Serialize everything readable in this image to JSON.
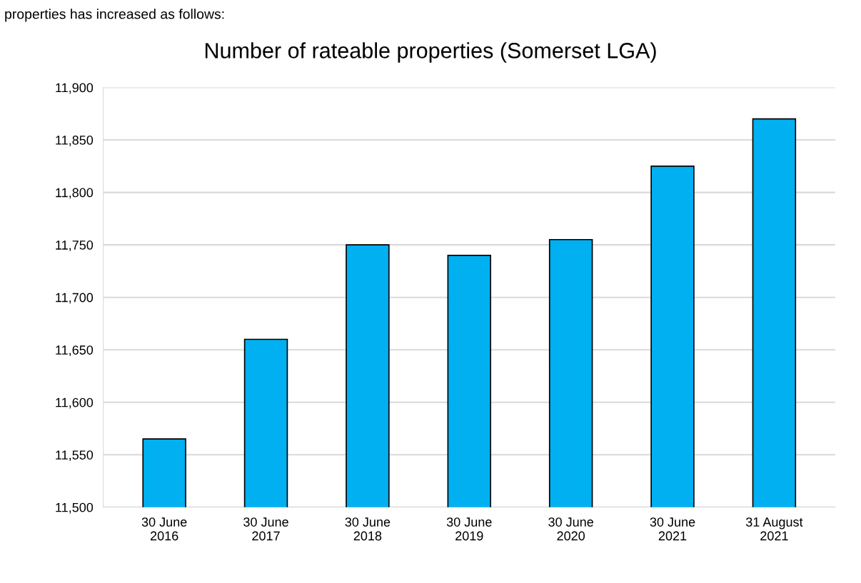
{
  "chart_data": {
    "type": "bar",
    "title": "Number of rateable properties (Somerset LGA)",
    "annotations": [
      "properties has increased as follows:"
    ],
    "categories": [
      "30 June\n2016",
      "30 June\n2017",
      "30 June\n2018",
      "30 June\n2019",
      "30 June\n2020",
      "30 June\n2021",
      "31 August\n2021"
    ],
    "values": [
      11565,
      11660,
      11750,
      11740,
      11755,
      11825,
      11870
    ],
    "color": "#00b0f0",
    "ylim": [
      11500,
      11900
    ],
    "yticks": [
      {
        "value": 11500,
        "label": "11,500"
      },
      {
        "value": 11550,
        "label": "11,550"
      },
      {
        "value": 11600,
        "label": "11,600"
      },
      {
        "value": 11650,
        "label": "11,650"
      },
      {
        "value": 11700,
        "label": "11,700"
      },
      {
        "value": 11750,
        "label": "11,750"
      },
      {
        "value": 11800,
        "label": "11,800"
      },
      {
        "value": 11850,
        "label": "11,850"
      },
      {
        "value": 11900,
        "label": "11,900"
      }
    ],
    "grid": "y"
  }
}
